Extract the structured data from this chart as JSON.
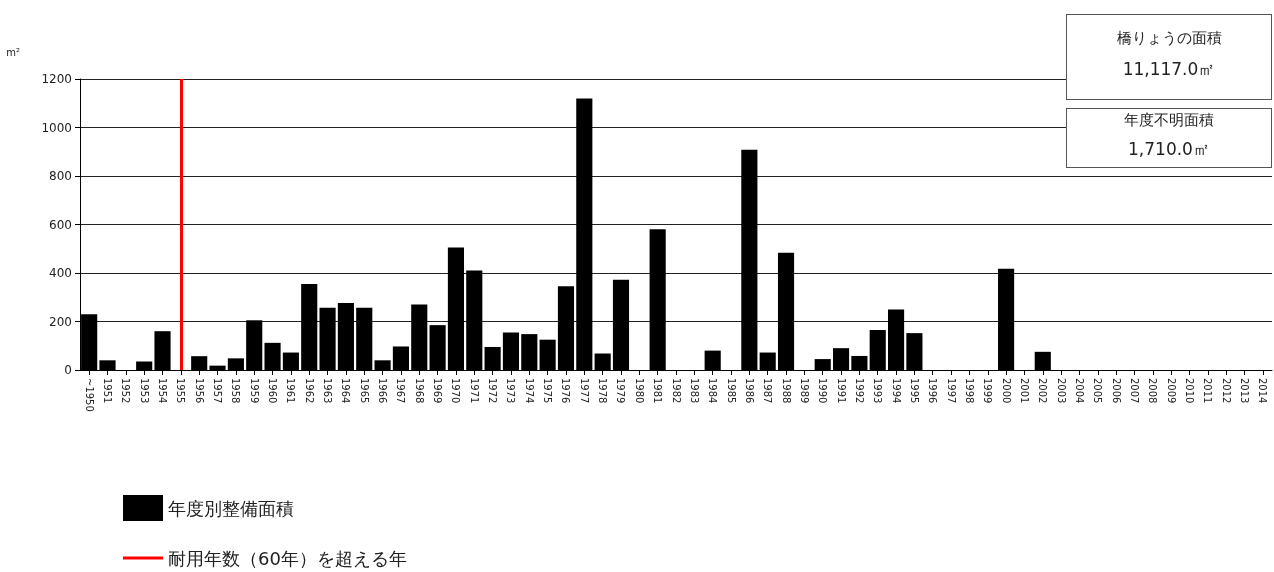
{
  "chart_data": {
    "type": "bar",
    "ylabel": "m²",
    "categories": [
      "~1950",
      "1951",
      "1952",
      "1953",
      "1954",
      "1955",
      "1956",
      "1957",
      "1958",
      "1959",
      "1960",
      "1961",
      "1962",
      "1963",
      "1964",
      "1965",
      "1966",
      "1967",
      "1968",
      "1969",
      "1970",
      "1971",
      "1972",
      "1973",
      "1974",
      "1975",
      "1976",
      "1977",
      "1978",
      "1979",
      "1980",
      "1981",
      "1982",
      "1983",
      "1984",
      "1985",
      "1986",
      "1987",
      "1988",
      "1989",
      "1990",
      "1991",
      "1992",
      "1993",
      "1994",
      "1995",
      "1996",
      "1997",
      "1998",
      "1999",
      "2000",
      "2001",
      "2002",
      "2003",
      "2004",
      "2005",
      "2006",
      "2007",
      "2008",
      "2009",
      "2010",
      "2011",
      "2012",
      "2013",
      "2014"
    ],
    "series": [
      {
        "name": "年度別整備面積",
        "color": "#000000",
        "values": [
          230,
          40,
          0,
          35,
          160,
          0,
          57,
          18,
          48,
          205,
          112,
          72,
          355,
          257,
          276,
          257,
          40,
          97,
          270,
          185,
          505,
          410,
          95,
          155,
          148,
          125,
          345,
          1120,
          68,
          372,
          0,
          580,
          0,
          0,
          80,
          0,
          908,
          72,
          483,
          0,
          45,
          90,
          58,
          165,
          250,
          152,
          0,
          0,
          0,
          0,
          418,
          0,
          75,
          0,
          0,
          0,
          0,
          0,
          0,
          0,
          0,
          0,
          0,
          0,
          0
        ]
      }
    ],
    "ylim": [
      0,
      1200
    ],
    "yticks": [
      0,
      200,
      400,
      600,
      800,
      1000,
      1200
    ],
    "grid": "y",
    "legend": "bottom left",
    "ref_lines": [
      {
        "axis": "x",
        "value": "1955",
        "label": "耐用年数（60年）を超える年",
        "color": "#ff0000"
      }
    ],
    "annotations": [
      "橋りょうの面積",
      "11,117.0㎡",
      "年度不明面積",
      "1,710.0㎡"
    ]
  }
}
